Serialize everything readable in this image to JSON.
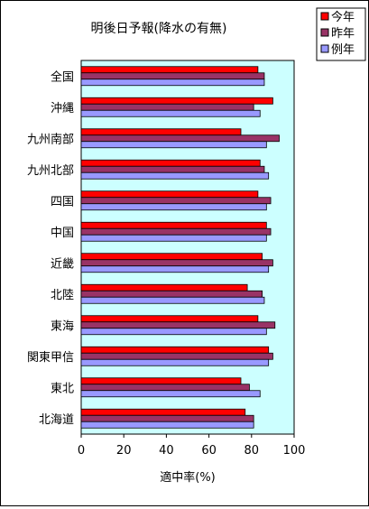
{
  "chart_data": {
    "type": "bar",
    "orientation": "horizontal",
    "title": "明後日予報(降水の有無)",
    "xlabel": "適中率(%)",
    "ylabel": "",
    "xlim": [
      0,
      100
    ],
    "xticks": [
      "0",
      "20",
      "40",
      "60",
      "80",
      "100"
    ],
    "grid": false,
    "legend_position": "top-right",
    "plot_background": "#CCFFFF",
    "categories": [
      "全国",
      "沖縄",
      "九州南部",
      "九州北部",
      "四国",
      "中国",
      "近畿",
      "北陸",
      "東海",
      "関東甲信",
      "東北",
      "北海道"
    ],
    "series": [
      {
        "name": "今年",
        "color": "#FF0000",
        "values": [
          83,
          90,
          75,
          84,
          83,
          87,
          85,
          78,
          83,
          88,
          75,
          77
        ]
      },
      {
        "name": "昨年",
        "color": "#993366",
        "values": [
          86,
          81,
          93,
          86,
          89,
          89,
          90,
          85,
          91,
          90,
          79,
          81
        ]
      },
      {
        "name": "例年",
        "color": "#9999FF",
        "values": [
          86,
          84,
          87,
          88,
          87,
          87,
          88,
          86,
          87,
          88,
          84,
          81
        ]
      }
    ]
  }
}
